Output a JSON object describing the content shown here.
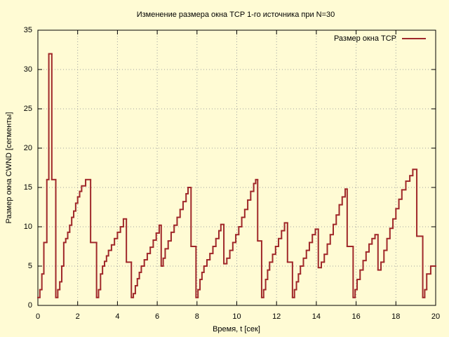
{
  "chart_data": {
    "type": "line",
    "step": true,
    "title": "Изменение размера окна TCP 1-го источника при N=30",
    "x_label": "Время, t [сек]",
    "y_label": "Размер окна CWND [сегменты]",
    "xlim": [
      0,
      20
    ],
    "ylim": [
      0,
      35
    ],
    "xticks": [
      0,
      2,
      4,
      6,
      8,
      10,
      12,
      14,
      16,
      18,
      20
    ],
    "yticks": [
      0,
      5,
      10,
      15,
      20,
      25,
      30,
      35
    ],
    "grid": true,
    "legend": "top-right",
    "background": "#fffbd4",
    "x": [
      0,
      0.1,
      0.2,
      0.3,
      0.45,
      0.55,
      0.7,
      0.9,
      1.0,
      1.1,
      1.2,
      1.3,
      1.4,
      1.5,
      1.6,
      1.7,
      1.8,
      1.9,
      2.0,
      2.1,
      2.2,
      2.4,
      2.65,
      2.95,
      3.05,
      3.15,
      3.25,
      3.35,
      3.45,
      3.55,
      3.7,
      3.85,
      4.0,
      4.15,
      4.3,
      4.45,
      4.7,
      4.8,
      4.9,
      5.0,
      5.1,
      5.2,
      5.35,
      5.5,
      5.65,
      5.8,
      5.95,
      6.1,
      6.2,
      6.3,
      6.4,
      6.55,
      6.7,
      6.85,
      7.0,
      7.15,
      7.3,
      7.45,
      7.55,
      7.7,
      7.95,
      8.05,
      8.15,
      8.25,
      8.35,
      8.5,
      8.65,
      8.8,
      8.95,
      9.1,
      9.2,
      9.35,
      9.5,
      9.65,
      9.8,
      9.95,
      10.1,
      10.25,
      10.4,
      10.55,
      10.7,
      10.85,
      10.95,
      11.05,
      11.25,
      11.35,
      11.45,
      11.55,
      11.65,
      11.8,
      11.95,
      12.1,
      12.25,
      12.4,
      12.55,
      12.8,
      12.9,
      13.0,
      13.1,
      13.2,
      13.35,
      13.5,
      13.65,
      13.8,
      13.95,
      14.1,
      14.25,
      14.4,
      14.55,
      14.7,
      14.85,
      15.0,
      15.15,
      15.3,
      15.45,
      15.55,
      15.85,
      15.95,
      16.05,
      16.2,
      16.35,
      16.5,
      16.65,
      16.8,
      16.95,
      17.1,
      17.25,
      17.4,
      17.55,
      17.7,
      17.85,
      18.0,
      18.15,
      18.3,
      18.5,
      18.7,
      18.85,
      19.05,
      19.35,
      19.45,
      19.55,
      19.75
    ],
    "series": [
      {
        "name": "Размер окна TCP",
        "color": "#a0282a",
        "values": [
          1,
          2,
          4,
          8,
          16,
          32,
          16,
          1,
          2,
          3,
          5,
          8,
          8.5,
          9.3,
          10.2,
          11.2,
          12,
          13,
          13.8,
          14.5,
          15.2,
          16,
          8,
          1,
          2,
          4,
          5,
          5.6,
          6.3,
          7,
          7.7,
          8.5,
          9.3,
          10,
          11,
          5.5,
          1,
          1.5,
          2.5,
          3.4,
          4.2,
          5,
          5.8,
          6.6,
          7.4,
          8.3,
          9.2,
          10.2,
          5,
          6,
          7.2,
          8.2,
          9.3,
          10.2,
          11.2,
          12.2,
          13.2,
          14.2,
          15,
          7.5,
          1,
          2,
          3.3,
          4.2,
          5,
          5.8,
          6.6,
          7.5,
          8.5,
          9.5,
          10.3,
          5.3,
          6,
          7,
          8,
          9,
          10,
          11.2,
          12.2,
          13.4,
          14.5,
          15.5,
          16,
          8.2,
          1,
          2,
          3.3,
          4.5,
          5.5,
          6.5,
          7.5,
          8.5,
          9.5,
          10.5,
          5.5,
          1,
          2,
          3,
          4,
          5,
          6,
          7,
          8,
          9,
          9.7,
          4.8,
          5.5,
          6.5,
          7.8,
          9,
          10.3,
          11.5,
          12.8,
          13.8,
          14.8,
          7.5,
          1,
          2,
          3.3,
          4.5,
          5.7,
          6.8,
          7.8,
          8.5,
          9,
          4.5,
          5.5,
          7,
          8.5,
          9.8,
          11,
          12.3,
          13.5,
          14.7,
          15.8,
          16.5,
          17.3,
          8.8,
          1,
          2,
          4,
          5
        ]
      }
    ]
  }
}
